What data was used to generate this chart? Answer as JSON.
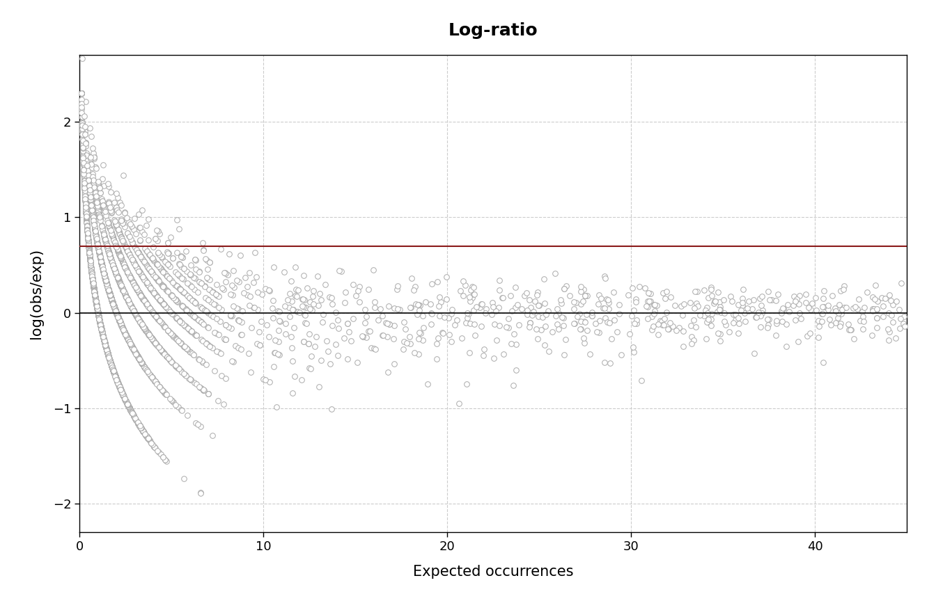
{
  "title": "Log-ratio",
  "xlabel": "Expected occurrences",
  "ylabel": "log(obs/exp)",
  "xlim": [
    0,
    45
  ],
  "ylim": [
    -2.3,
    2.7
  ],
  "xticks": [
    0,
    10,
    20,
    30,
    40
  ],
  "yticks": [
    -2,
    -1,
    0,
    1,
    2
  ],
  "black_hline": 0.0,
  "red_hline": 0.6931471805599453,
  "scatter_facecolor": "white",
  "scatter_edge_color": "#aaaaaa",
  "black_line_color": "#000000",
  "red_line_color": "#8b1a1a",
  "grid_color": "#cccccc",
  "background_color": "#ffffff",
  "title_fontsize": 18,
  "label_fontsize": 15,
  "tick_fontsize": 13,
  "marker_size": 5.5,
  "seed": 42,
  "n_main": 5000,
  "exp_scale": 2.0
}
